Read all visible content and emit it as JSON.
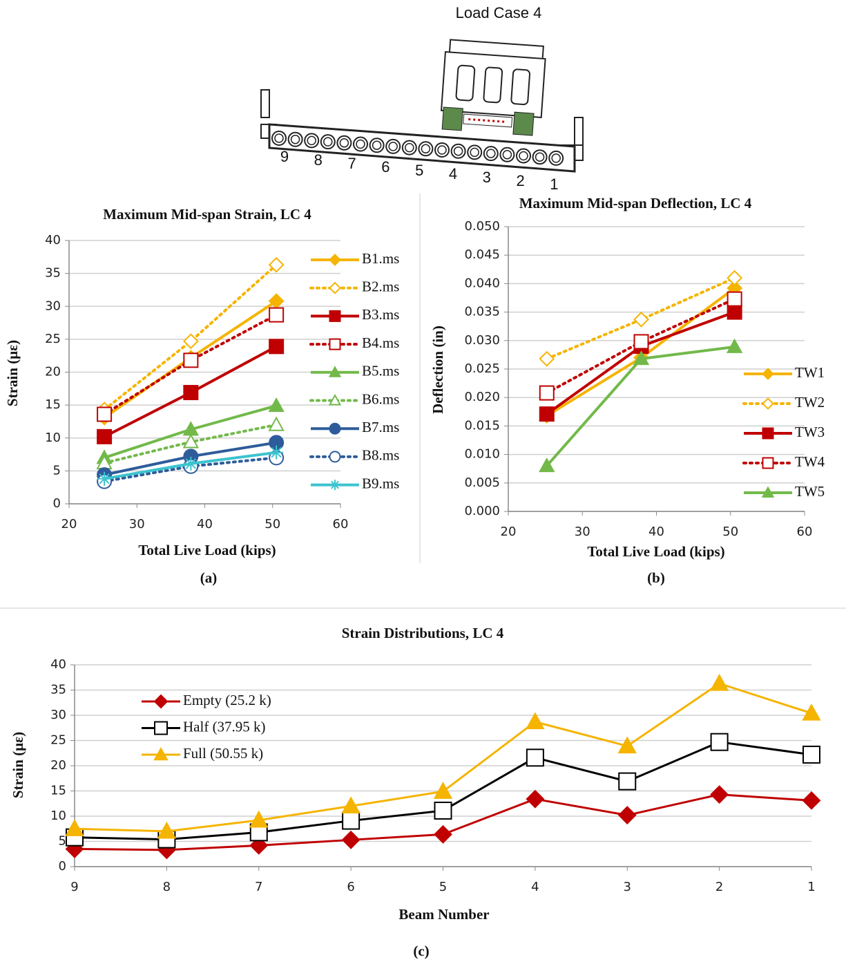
{
  "diagram": {
    "title": "Load Case 4",
    "beam_labels": [
      "9",
      "8",
      "7",
      "6",
      "5",
      "4",
      "3",
      "2",
      "1"
    ]
  },
  "chart_data": [
    {
      "type": "line",
      "title": "Maximum Mid-span Strain, LC 4",
      "x_label": "Total Live Load (kips)",
      "y_label": "Strain (με)",
      "caption": "(a)",
      "x": [
        25.2,
        37.95,
        50.55
      ],
      "xlim": [
        20,
        60
      ],
      "xticks": [
        20,
        30,
        40,
        50,
        60
      ],
      "ylim": [
        0,
        40
      ],
      "yticks": [
        0,
        5,
        10,
        15,
        20,
        25,
        30,
        35,
        40
      ],
      "grid": true,
      "legend": "right",
      "series": [
        {
          "name": "B1.ms",
          "color": "#f5b400",
          "marker": "diamond",
          "filled": true,
          "style": "solid",
          "values": [
            13.1,
            22.2,
            30.8
          ]
        },
        {
          "name": "B2.ms",
          "color": "#f5b400",
          "marker": "diamond",
          "filled": false,
          "style": "dotted",
          "values": [
            14.3,
            24.7,
            36.3
          ]
        },
        {
          "name": "B3.ms",
          "color": "#c00000",
          "marker": "square",
          "filled": true,
          "style": "solid",
          "values": [
            10.2,
            16.9,
            23.9
          ]
        },
        {
          "name": "B4.ms",
          "color": "#c00000",
          "marker": "square",
          "filled": false,
          "style": "dotted",
          "values": [
            13.6,
            21.8,
            28.7
          ]
        },
        {
          "name": "B5.ms",
          "color": "#72b94a",
          "marker": "triangle",
          "filled": true,
          "style": "solid",
          "values": [
            7,
            11.3,
            14.9
          ]
        },
        {
          "name": "B6.ms",
          "color": "#72b94a",
          "marker": "triangle",
          "filled": false,
          "style": "dotted",
          "values": [
            6.2,
            9.4,
            12
          ]
        },
        {
          "name": "B7.ms",
          "color": "#2e5c9a",
          "marker": "circle",
          "filled": true,
          "style": "solid",
          "values": [
            4.4,
            7.2,
            9.3
          ]
        },
        {
          "name": "B8.ms",
          "color": "#2e5c9a",
          "marker": "circle",
          "filled": false,
          "style": "dotted",
          "values": [
            3.4,
            5.7,
            7
          ]
        },
        {
          "name": "B9.ms",
          "color": "#3cc3cf",
          "marker": "star",
          "filled": true,
          "style": "solid",
          "values": [
            3.8,
            6.1,
            7.8
          ]
        }
      ]
    },
    {
      "type": "line",
      "title": "Maximum Mid-span Deflection, LC 4",
      "x_label": "Total Live Load (kips)",
      "y_label": "Deflection (in)",
      "caption": "(b)",
      "x": [
        25.2,
        37.95,
        50.55
      ],
      "xlim": [
        20,
        60
      ],
      "xticks": [
        20,
        30,
        40,
        50,
        60
      ],
      "ylim": [
        0,
        0.05
      ],
      "yticks": [
        {
          "value": 0,
          "label": "0.000"
        },
        {
          "value": 0.005,
          "label": "0.005"
        },
        {
          "value": 0.01,
          "label": "0.010"
        },
        {
          "value": 0.015,
          "label": "0.015"
        },
        {
          "value": 0.02,
          "label": "0.020"
        },
        {
          "value": 0.025,
          "label": "0.025"
        },
        {
          "value": 0.03,
          "label": "0.030"
        },
        {
          "value": 0.035,
          "label": "0.035"
        },
        {
          "value": 0.04,
          "label": "0.040"
        },
        {
          "value": 0.045,
          "label": "0.045"
        },
        {
          "value": 0.05,
          "label": "0.050"
        }
      ],
      "grid": true,
      "legend": "lower right",
      "series": [
        {
          "name": "TW1",
          "color": "#f5b400",
          "marker": "diamond",
          "filled": true,
          "style": "solid",
          "values": [
            0.0168,
            0.027,
            0.0392
          ]
        },
        {
          "name": "TW2",
          "color": "#f5b400",
          "marker": "diamond",
          "filled": false,
          "style": "dotted",
          "values": [
            0.0268,
            0.0337,
            0.041
          ]
        },
        {
          "name": "TW3",
          "color": "#c00000",
          "marker": "square",
          "filled": true,
          "style": "solid",
          "values": [
            0.0171,
            0.029,
            0.035
          ]
        },
        {
          "name": "TW4",
          "color": "#c00000",
          "marker": "square",
          "filled": false,
          "style": "dotted",
          "values": [
            0.0208,
            0.0298,
            0.0373
          ]
        },
        {
          "name": "TW5",
          "color": "#72b94a",
          "marker": "triangle",
          "filled": true,
          "style": "solid",
          "values": [
            0.008,
            0.0268,
            0.0289
          ]
        }
      ]
    },
    {
      "type": "line",
      "title": "Strain Distributions, LC 4",
      "x_label": "Beam Number",
      "y_label": "Strain (με)",
      "caption": "(c)",
      "categories": [
        "9",
        "8",
        "7",
        "6",
        "5",
        "4",
        "3",
        "2",
        "1"
      ],
      "ylim": [
        0,
        40
      ],
      "yticks": [
        0,
        5,
        10,
        15,
        20,
        25,
        30,
        35,
        40
      ],
      "grid": true,
      "legend": "upper left",
      "series": [
        {
          "name": "Empty (25.2 k)",
          "color": "#c00000",
          "marker": "diamond",
          "filled": true,
          "style": "solid",
          "values": [
            3.5,
            3.3,
            4.2,
            5.3,
            6.4,
            13.4,
            10.2,
            14.3,
            13.1
          ]
        },
        {
          "name": "Half (37.95 k)",
          "color": "#000000",
          "marker": "square",
          "filled": false,
          "style": "solid",
          "values": [
            5.8,
            5.4,
            6.8,
            9.1,
            11.1,
            21.6,
            16.9,
            24.7,
            22.2
          ]
        },
        {
          "name": "Full (50.55 k)",
          "color": "#f5b400",
          "marker": "triangle",
          "filled": true,
          "style": "solid",
          "values": [
            7.5,
            7,
            9.2,
            12,
            14.9,
            28.7,
            23.9,
            36.3,
            30.4
          ]
        }
      ]
    }
  ]
}
